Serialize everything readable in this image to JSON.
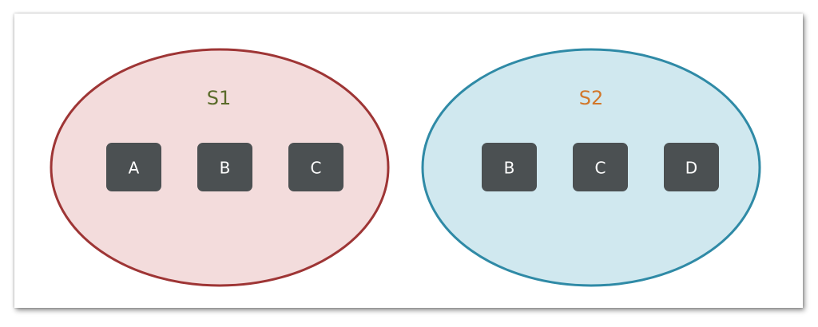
{
  "sets": [
    {
      "label": "S1",
      "label_color": "#5a6b2a",
      "fill": "#f3dcdc",
      "stroke": "#9e3535",
      "elements": [
        "A",
        "B",
        "C"
      ]
    },
    {
      "label": "S2",
      "label_color": "#d2772a",
      "fill": "#d0e8ef",
      "stroke": "#2f8aa6",
      "elements": [
        "B",
        "C",
        "D"
      ]
    }
  ],
  "element_box_color": "#4b5052"
}
